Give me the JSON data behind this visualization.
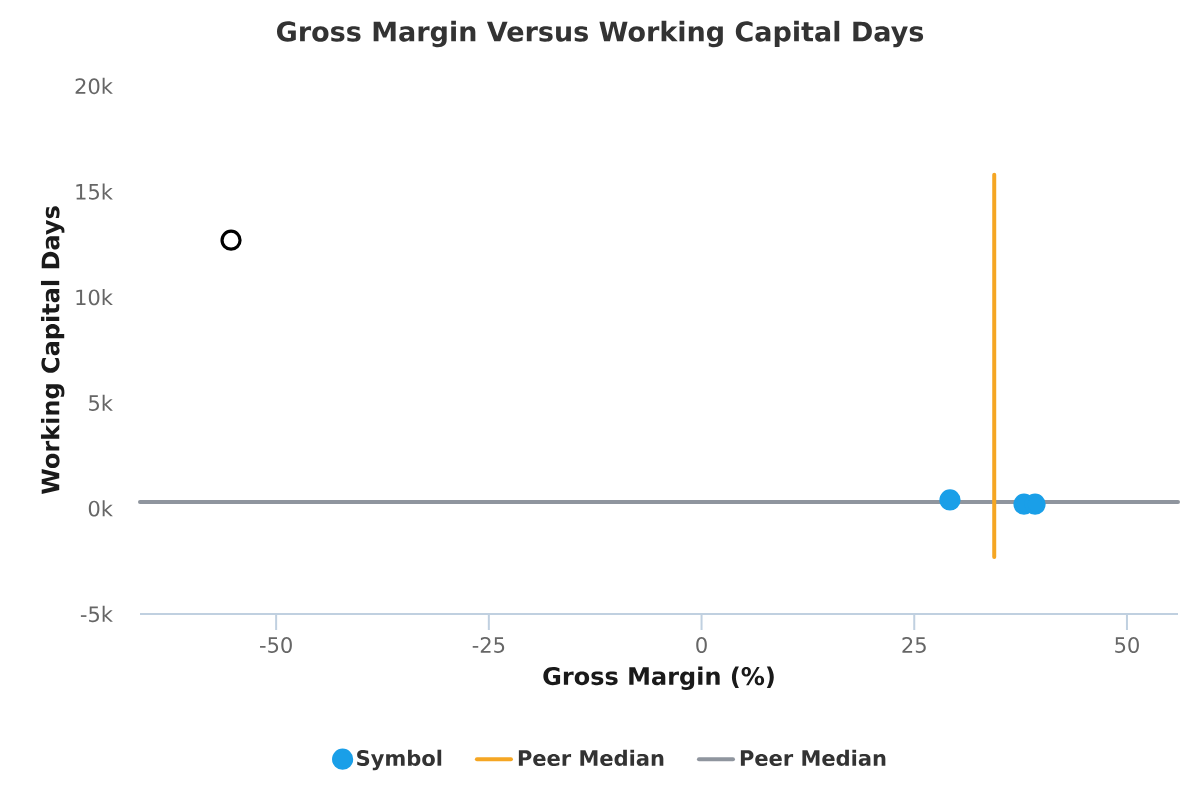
{
  "chart_data": {
    "type": "scatter",
    "title": "Gross Margin Versus Working Capital Days",
    "xlabel": "Gross Margin (%)",
    "ylabel": "Working Capital Days",
    "xlim": [
      -66,
      56
    ],
    "xticks": [
      -50,
      -25,
      0,
      25,
      50
    ],
    "ylim": [
      -5000,
      20000
    ],
    "yticks": [
      {
        "value": -5000,
        "label": "-5k"
      },
      {
        "value": 0,
        "label": "0k"
      },
      {
        "value": 5000,
        "label": "5k"
      },
      {
        "value": 10000,
        "label": "10k"
      },
      {
        "value": 15000,
        "label": "15k"
      },
      {
        "value": 20000,
        "label": "20k"
      }
    ],
    "legend": "bottom",
    "marker": "circle",
    "series": [
      {
        "name": "Peer Median",
        "type": "line",
        "marker": "none",
        "color": "#8f959e",
        "x": [
          -66,
          56
        ],
        "values": [
          300,
          300
        ]
      },
      {
        "name": "Peer Median",
        "type": "line",
        "marker": "none",
        "color": "#f5a623",
        "x": [
          34.4,
          34.4
        ],
        "values": [
          15800,
          -2300
        ]
      },
      {
        "color": "#000000",
        "x": [
          -55.3
        ],
        "values": [
          12700
        ]
      },
      {
        "name": "Symbol",
        "color": "#1a9fe8",
        "x": [
          29.2,
          37.9,
          39.2
        ],
        "values": [
          400,
          200,
          200
        ]
      }
    ]
  }
}
